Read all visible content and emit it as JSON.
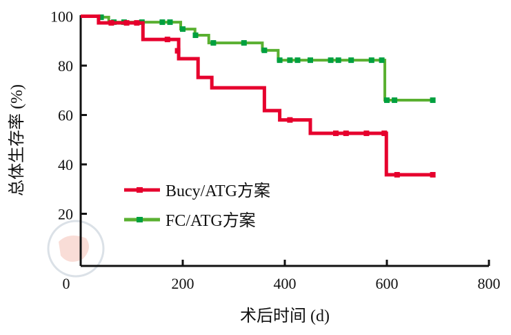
{
  "chart_data": {
    "type": "line",
    "subtype": "kaplan-meier step",
    "xlabel": "术后时间 (d)",
    "ylabel": "总体生存率 (%)",
    "xlim": [
      0,
      800
    ],
    "ylim": [
      0,
      100
    ],
    "xticks": [
      "0",
      "200",
      "400",
      "600",
      "800"
    ],
    "yticks": [
      "20",
      "40",
      "60",
      "80",
      "100"
    ],
    "grid": false,
    "legend_position": "lower-left",
    "series": [
      {
        "name": "Bucy/ATG方案",
        "color": "#e6002d",
        "steps": [
          [
            0,
            100
          ],
          [
            35,
            97.3
          ],
          [
            122,
            90.6
          ],
          [
            192,
            82.8
          ],
          [
            230,
            75.2
          ],
          [
            257,
            71
          ],
          [
            360,
            61.8
          ],
          [
            390,
            58
          ],
          [
            450,
            52.6
          ],
          [
            599,
            35.8
          ],
          [
            690,
            35.8
          ]
        ],
        "censored": [
          [
            60,
            97.3
          ],
          [
            90,
            97.3
          ],
          [
            110,
            97.3
          ],
          [
            170,
            90.6
          ],
          [
            190,
            86
          ],
          [
            410,
            58
          ],
          [
            500,
            52.6
          ],
          [
            520,
            52.6
          ],
          [
            560,
            52.6
          ],
          [
            595,
            52.6
          ],
          [
            620,
            35.8
          ],
          [
            690,
            35.8
          ]
        ]
      },
      {
        "name": "FC/ATG方案",
        "color": "#5ab031",
        "marker_color": "#00a040",
        "steps": [
          [
            0,
            100
          ],
          [
            40,
            99.6
          ],
          [
            55,
            97.6
          ],
          [
            196,
            94.8
          ],
          [
            224,
            92.3
          ],
          [
            251,
            89.2
          ],
          [
            356,
            86.2
          ],
          [
            387,
            82.2
          ],
          [
            596,
            66
          ],
          [
            690,
            66
          ]
        ],
        "censored": [
          [
            40,
            99.6
          ],
          [
            65,
            97.6
          ],
          [
            85,
            97.6
          ],
          [
            120,
            97.6
          ],
          [
            160,
            97.6
          ],
          [
            175,
            97.6
          ],
          [
            200,
            94.8
          ],
          [
            225,
            92.3
          ],
          [
            260,
            89.2
          ],
          [
            320,
            89.2
          ],
          [
            360,
            86.2
          ],
          [
            390,
            82.2
          ],
          [
            410,
            82.2
          ],
          [
            425,
            82.2
          ],
          [
            450,
            82.2
          ],
          [
            490,
            82.2
          ],
          [
            505,
            82.2
          ],
          [
            530,
            82.2
          ],
          [
            570,
            82.2
          ],
          [
            590,
            82.2
          ],
          [
            600,
            66
          ],
          [
            615,
            66
          ],
          [
            690,
            66
          ]
        ]
      }
    ]
  }
}
